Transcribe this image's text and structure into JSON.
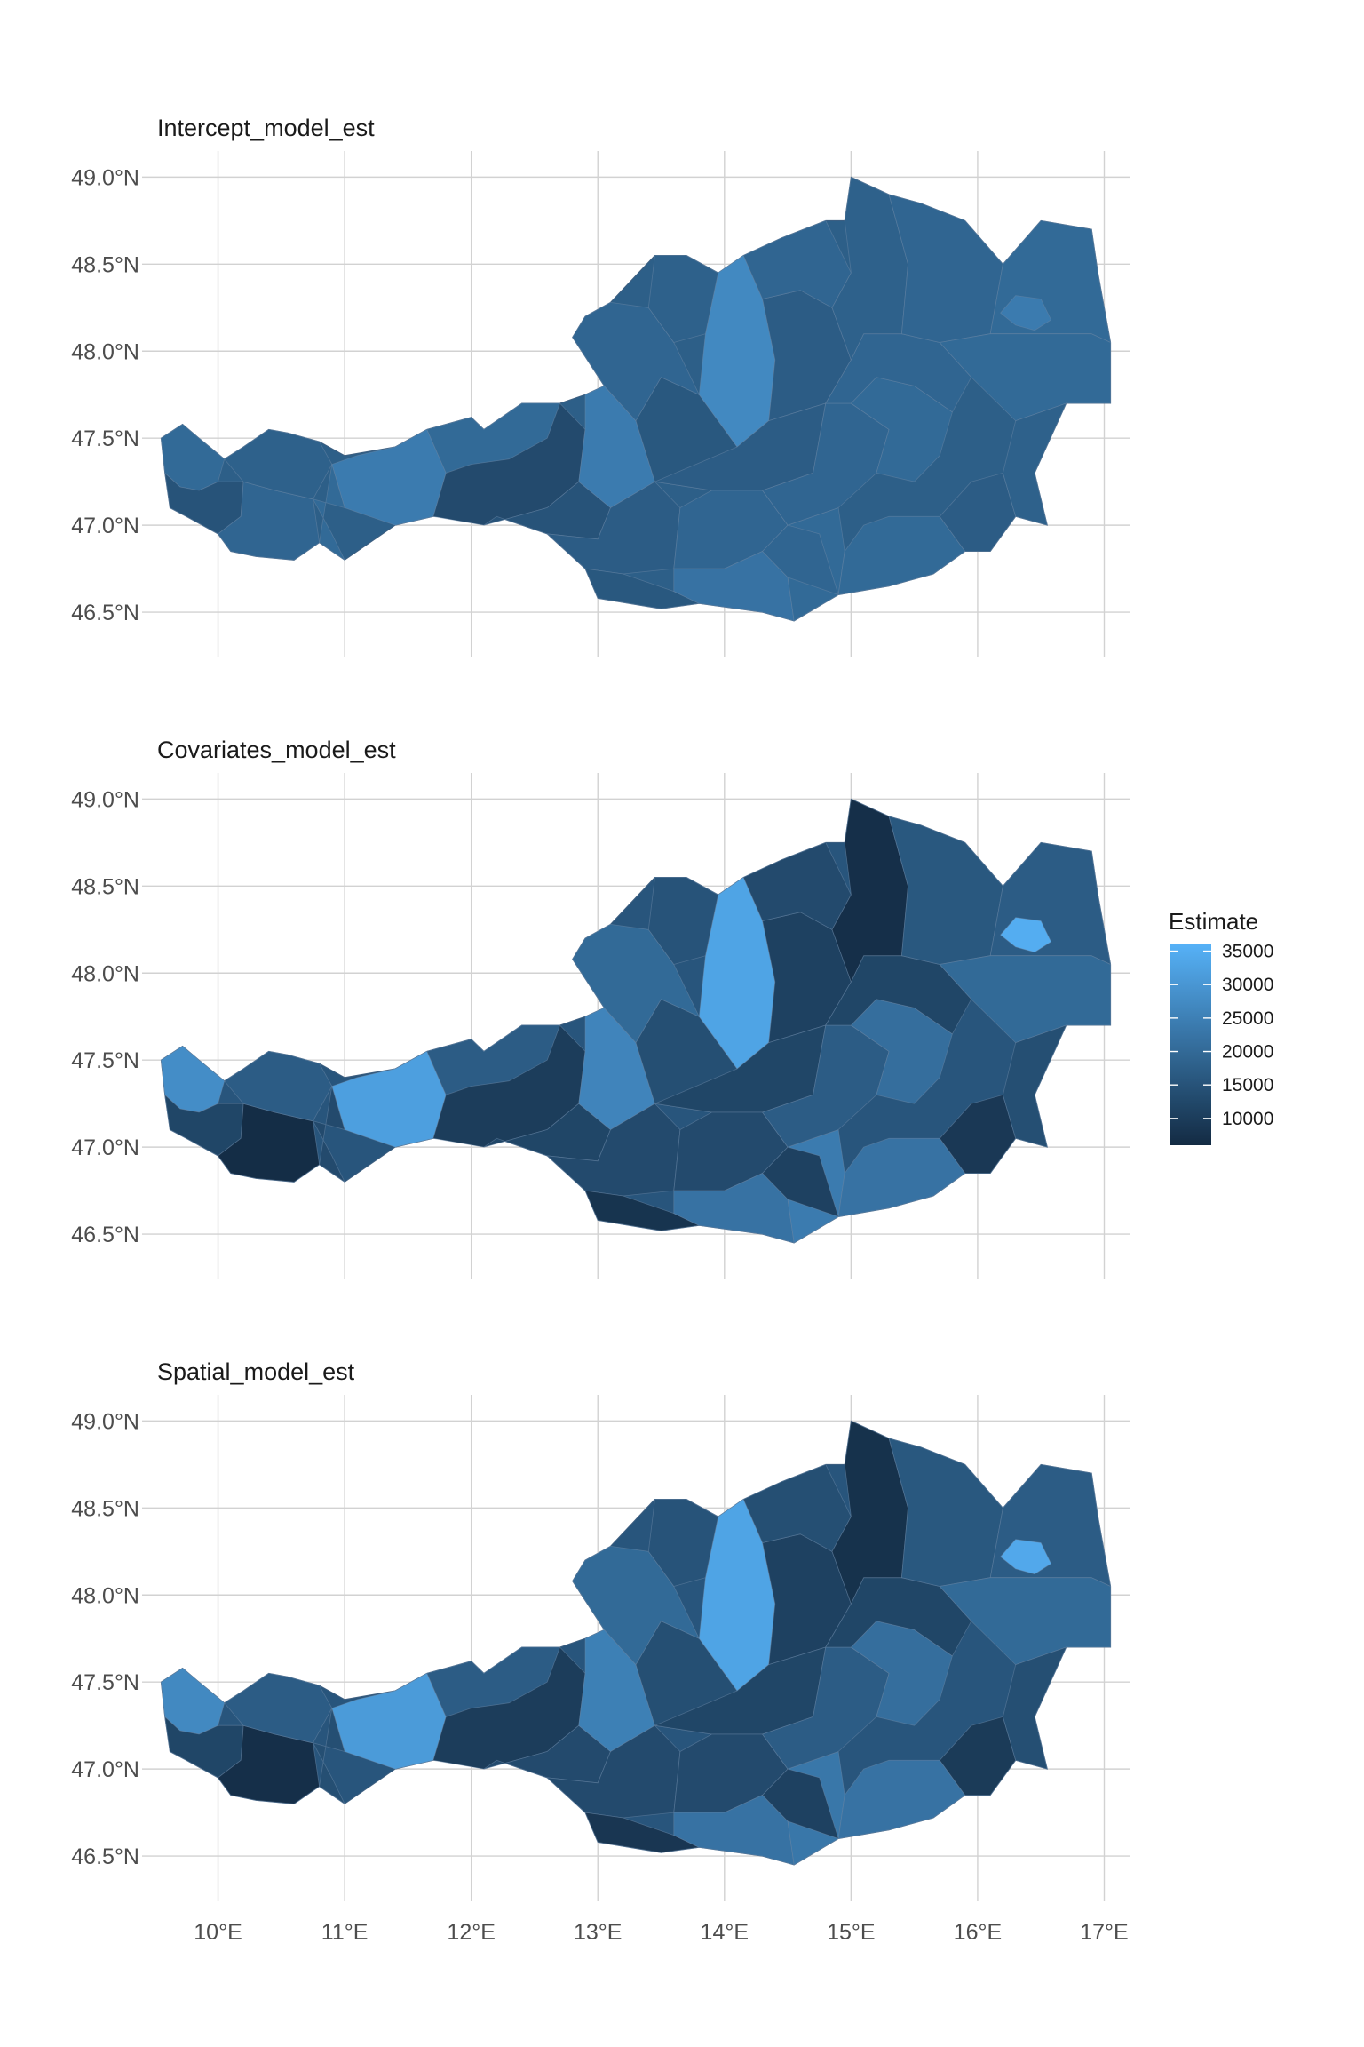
{
  "chart_data": {
    "type": "choropleth-map",
    "panels": [
      {
        "title": "Intercept_model_est",
        "x_ticks": [
          "10°E",
          "11°E",
          "12°E",
          "13°E",
          "14°E",
          "15°E",
          "16°E",
          "17°E"
        ],
        "y_ticks": [
          "49.0°N",
          "48.5°N",
          "48.0°N",
          "47.5°N",
          "47.0°N",
          "46.5°N"
        ],
        "show_x_ticks": false,
        "regions": [
          {
            "id": "r1",
            "value": 20000
          },
          {
            "id": "r2",
            "value": 15000
          },
          {
            "id": "r3",
            "value": 19000
          },
          {
            "id": "r4",
            "value": 18000
          },
          {
            "id": "r5",
            "value": 24000
          },
          {
            "id": "r6",
            "value": 20000
          },
          {
            "id": "r7",
            "value": 13000
          },
          {
            "id": "r8",
            "value": 20000
          },
          {
            "id": "r9",
            "value": 15000
          },
          {
            "id": "r10",
            "value": 24000
          },
          {
            "id": "r11",
            "value": 16000
          },
          {
            "id": "r12",
            "value": 19000
          },
          {
            "id": "r13",
            "value": 27000
          },
          {
            "id": "r14",
            "value": 18000
          },
          {
            "id": "r15",
            "value": 17000
          },
          {
            "id": "r16",
            "value": 19000
          },
          {
            "id": "r17",
            "value": 17000
          },
          {
            "id": "r18",
            "value": 17000
          },
          {
            "id": "r19",
            "value": 16000
          },
          {
            "id": "r20",
            "value": 19000
          },
          {
            "id": "r21",
            "value": 22000
          },
          {
            "id": "r22",
            "value": 20000
          },
          {
            "id": "r23",
            "value": 19000
          },
          {
            "id": "r24",
            "value": 19000
          },
          {
            "id": "r25",
            "value": 20000
          },
          {
            "id": "r26",
            "value": 17000
          },
          {
            "id": "r27",
            "value": 20000
          },
          {
            "id": "r28",
            "value": 19000
          },
          {
            "id": "r29",
            "value": 18000
          },
          {
            "id": "r30",
            "value": 19000
          },
          {
            "id": "r31",
            "value": 20000
          },
          {
            "id": "r32",
            "value": 20000
          },
          {
            "id": "r33",
            "value": 24000
          },
          {
            "id": "r34",
            "value": 18000
          }
        ]
      },
      {
        "title": "Covariates_model_est",
        "x_ticks": [
          "10°E",
          "11°E",
          "12°E",
          "13°E",
          "14°E",
          "15°E",
          "16°E",
          "17°E"
        ],
        "y_ticks": [
          "49.0°N",
          "48.5°N",
          "48.0°N",
          "47.5°N",
          "47.0°N",
          "46.5°N"
        ],
        "show_x_ticks": false,
        "regions": [
          {
            "id": "r1",
            "value": 28000
          },
          {
            "id": "r2",
            "value": 12000
          },
          {
            "id": "r3",
            "value": 6500
          },
          {
            "id": "r4",
            "value": 17000
          },
          {
            "id": "r5",
            "value": 32000
          },
          {
            "id": "r6",
            "value": 13000
          },
          {
            "id": "r7",
            "value": 10000
          },
          {
            "id": "r8",
            "value": 17000
          },
          {
            "id": "r9",
            "value": 12000
          },
          {
            "id": "r10",
            "value": 26000
          },
          {
            "id": "r11",
            "value": 14000
          },
          {
            "id": "r12",
            "value": 20000
          },
          {
            "id": "r13",
            "value": 33000
          },
          {
            "id": "r14",
            "value": 15000
          },
          {
            "id": "r15",
            "value": 11000
          },
          {
            "id": "r16",
            "value": 13000
          },
          {
            "id": "r17",
            "value": 12000
          },
          {
            "id": "r18",
            "value": 13000
          },
          {
            "id": "r19",
            "value": 8000
          },
          {
            "id": "r20",
            "value": 13000
          },
          {
            "id": "r21",
            "value": 22000
          },
          {
            "id": "r22",
            "value": 24000
          },
          {
            "id": "r23",
            "value": 17000
          },
          {
            "id": "r24",
            "value": 11000
          },
          {
            "id": "r25",
            "value": 22000
          },
          {
            "id": "r26",
            "value": 9000
          },
          {
            "id": "r27",
            "value": 21000
          },
          {
            "id": "r28",
            "value": 12000
          },
          {
            "id": "r29",
            "value": 7000
          },
          {
            "id": "r30",
            "value": 16000
          },
          {
            "id": "r31",
            "value": 17000
          },
          {
            "id": "r32",
            "value": 20000
          },
          {
            "id": "r33",
            "value": 35000
          },
          {
            "id": "r34",
            "value": 14000
          }
        ]
      },
      {
        "title": "Spatial_model_est",
        "x_ticks": [
          "10°E",
          "11°E",
          "12°E",
          "13°E",
          "14°E",
          "15°E",
          "16°E",
          "17°E"
        ],
        "y_ticks": [
          "49.0°N",
          "48.5°N",
          "48.0°N",
          "47.5°N",
          "47.0°N",
          "46.5°N"
        ],
        "show_x_ticks": true,
        "regions": [
          {
            "id": "r1",
            "value": 27000
          },
          {
            "id": "r2",
            "value": 12000
          },
          {
            "id": "r3",
            "value": 7000
          },
          {
            "id": "r4",
            "value": 17000
          },
          {
            "id": "r5",
            "value": 31000
          },
          {
            "id": "r6",
            "value": 14000
          },
          {
            "id": "r7",
            "value": 10000
          },
          {
            "id": "r8",
            "value": 17000
          },
          {
            "id": "r9",
            "value": 13000
          },
          {
            "id": "r10",
            "value": 25000
          },
          {
            "id": "r11",
            "value": 14000
          },
          {
            "id": "r12",
            "value": 20000
          },
          {
            "id": "r13",
            "value": 33000
          },
          {
            "id": "r14",
            "value": 15000
          },
          {
            "id": "r15",
            "value": 11000
          },
          {
            "id": "r16",
            "value": 14000
          },
          {
            "id": "r17",
            "value": 12000
          },
          {
            "id": "r18",
            "value": 13000
          },
          {
            "id": "r19",
            "value": 8500
          },
          {
            "id": "r20",
            "value": 13000
          },
          {
            "id": "r21",
            "value": 22000
          },
          {
            "id": "r22",
            "value": 23000
          },
          {
            "id": "r23",
            "value": 17000
          },
          {
            "id": "r24",
            "value": 11000
          },
          {
            "id": "r25",
            "value": 22000
          },
          {
            "id": "r26",
            "value": 9500
          },
          {
            "id": "r27",
            "value": 21000
          },
          {
            "id": "r28",
            "value": 12000
          },
          {
            "id": "r29",
            "value": 7500
          },
          {
            "id": "r30",
            "value": 16000
          },
          {
            "id": "r31",
            "value": 17000
          },
          {
            "id": "r32",
            "value": 20000
          },
          {
            "id": "r33",
            "value": 34000
          },
          {
            "id": "r34",
            "value": 14000
          }
        ]
      }
    ],
    "legend": {
      "title": "Estimate",
      "labels": [
        "35000",
        "30000",
        "25000",
        "20000",
        "15000",
        "10000"
      ],
      "values": [
        35000,
        30000,
        25000,
        20000,
        15000,
        10000
      ],
      "range": [
        6000,
        36000
      ],
      "color_low": "#132b43",
      "color_high": "#56b1f7",
      "placement": "right"
    },
    "grid": true
  }
}
